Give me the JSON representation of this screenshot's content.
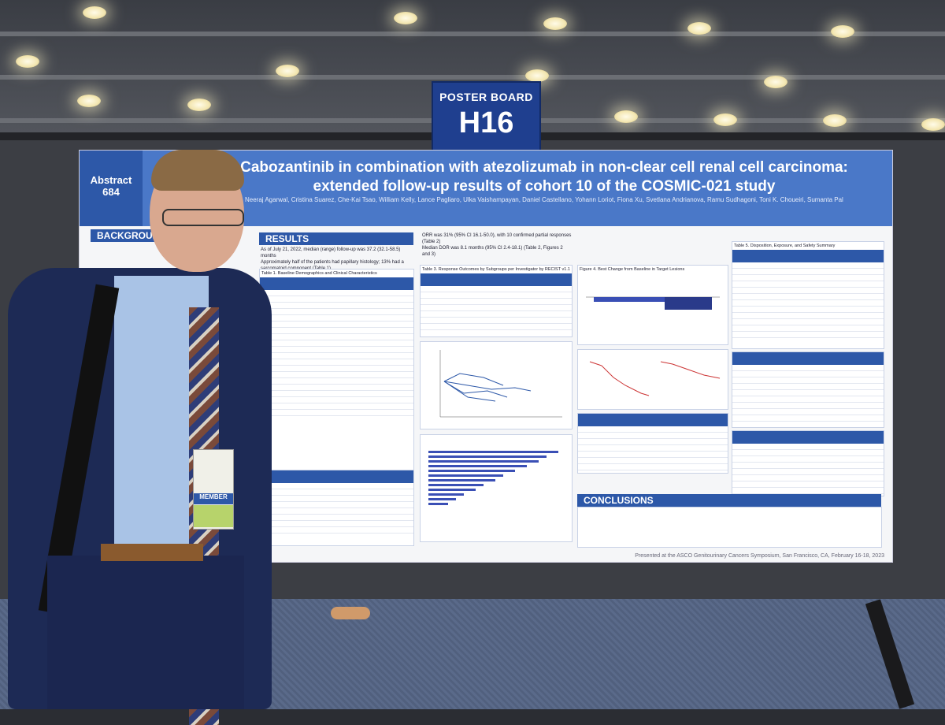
{
  "poster_board": {
    "label": "POSTER BOARD",
    "id": "H16"
  },
  "poster": {
    "abstract_label": "Abstract",
    "abstract_number": "684",
    "title_line1": "Cabozantinib in combination with atezolizumab in non-clear cell renal cell carcinoma:",
    "title_line2": "extended follow-up results of cohort 10 of the COSMIC-021 study",
    "authors": "Neeraj Agarwal, Cristina Suarez, Che-Kai Tsao, William Kelly, Lance Pagliaro, Ulka Vaishampayan, Daniel Castellano, Yohann Loriot, Fiona Xu, Svetlana Andrianova, Ramu Sudhagoni, Toni K. Choueiri, Sumanta Pal",
    "sections": {
      "background": "BACKGROUND",
      "results": "RESULTS",
      "conclusions": "CONCLUSIONS"
    },
    "results_bullets": [
      "As of July 21, 2022, median (range) follow-up was 37.2 (32.1-58.5) months",
      "Approximately half of the patients had papillary histology; 13% had a sarcomatoid component (Table 1)"
    ],
    "response_bullets": [
      "ORR was 31% (95% CI 16.1-50.0), with 10 confirmed partial responses (Table 2)",
      "Median DOR was 8.1 months (95% CI 2.4-18.1) (Table 2, Figures 2 and 3)"
    ],
    "table_titles": [
      "Table 1. Baseline Demographics and Clinical Characteristics",
      "Table 3. Response Outcomes by Subgroups per Investigator by RECIST v1.1",
      "Figure 4. Best Change from Baseline in Target Lesions",
      "Table 5. Disposition, Exposure, and Safety Summary"
    ],
    "footer": "Presented at the ASCO Genitourinary Cancers Symposium, San Francisco, CA, February 16-18, 2023"
  },
  "badge": {
    "member_label": "MEMBER"
  }
}
